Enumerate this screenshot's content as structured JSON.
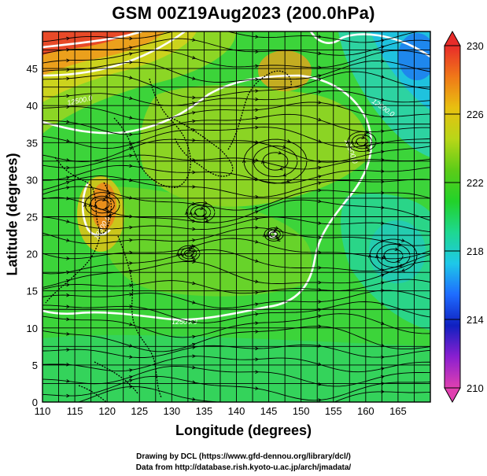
{
  "title": "GSM 00Z19Aug2023 (200.0hPa)",
  "xlabel": "Longitude (degrees)",
  "ylabel": "Latitude  (degrees)",
  "x_ticks": [
    "110",
    "115",
    "120",
    "125",
    "130",
    "135",
    "140",
    "145",
    "150",
    "155",
    "160",
    "165"
  ],
  "y_ticks": [
    "0",
    "5",
    "10",
    "15",
    "20",
    "25",
    "30",
    "35",
    "40",
    "45"
  ],
  "colorbar_ticks": [
    "230",
    "226",
    "222",
    "218",
    "214",
    "210"
  ],
  "contour_labels": [
    "12500.0",
    "12500.0",
    "12500.0",
    "12500.0",
    "12500.0"
  ],
  "credit_line1": "Drawing by DCL (https://www.gfd-dennou.org/library/dcl/)",
  "credit_line2": "Data from http://database.rish.kyoto-u.ac.jp/arch/jmadata/",
  "map": {
    "lon_range": [
      110,
      170
    ],
    "lat_range": [
      0,
      50
    ],
    "grid": true,
    "fields": [
      "temperature (shaded)",
      "streamlines",
      "geopotential height contour"
    ]
  },
  "colorbar": {
    "range": [
      210,
      230
    ],
    "colors": [
      "#e040b0",
      "#8a1fd0",
      "#1020c0",
      "#1e6cff",
      "#1ec8e8",
      "#1ed890",
      "#22d22a",
      "#5ccc18",
      "#b8d618",
      "#e8c010",
      "#f07818",
      "#e82c2a"
    ]
  }
}
